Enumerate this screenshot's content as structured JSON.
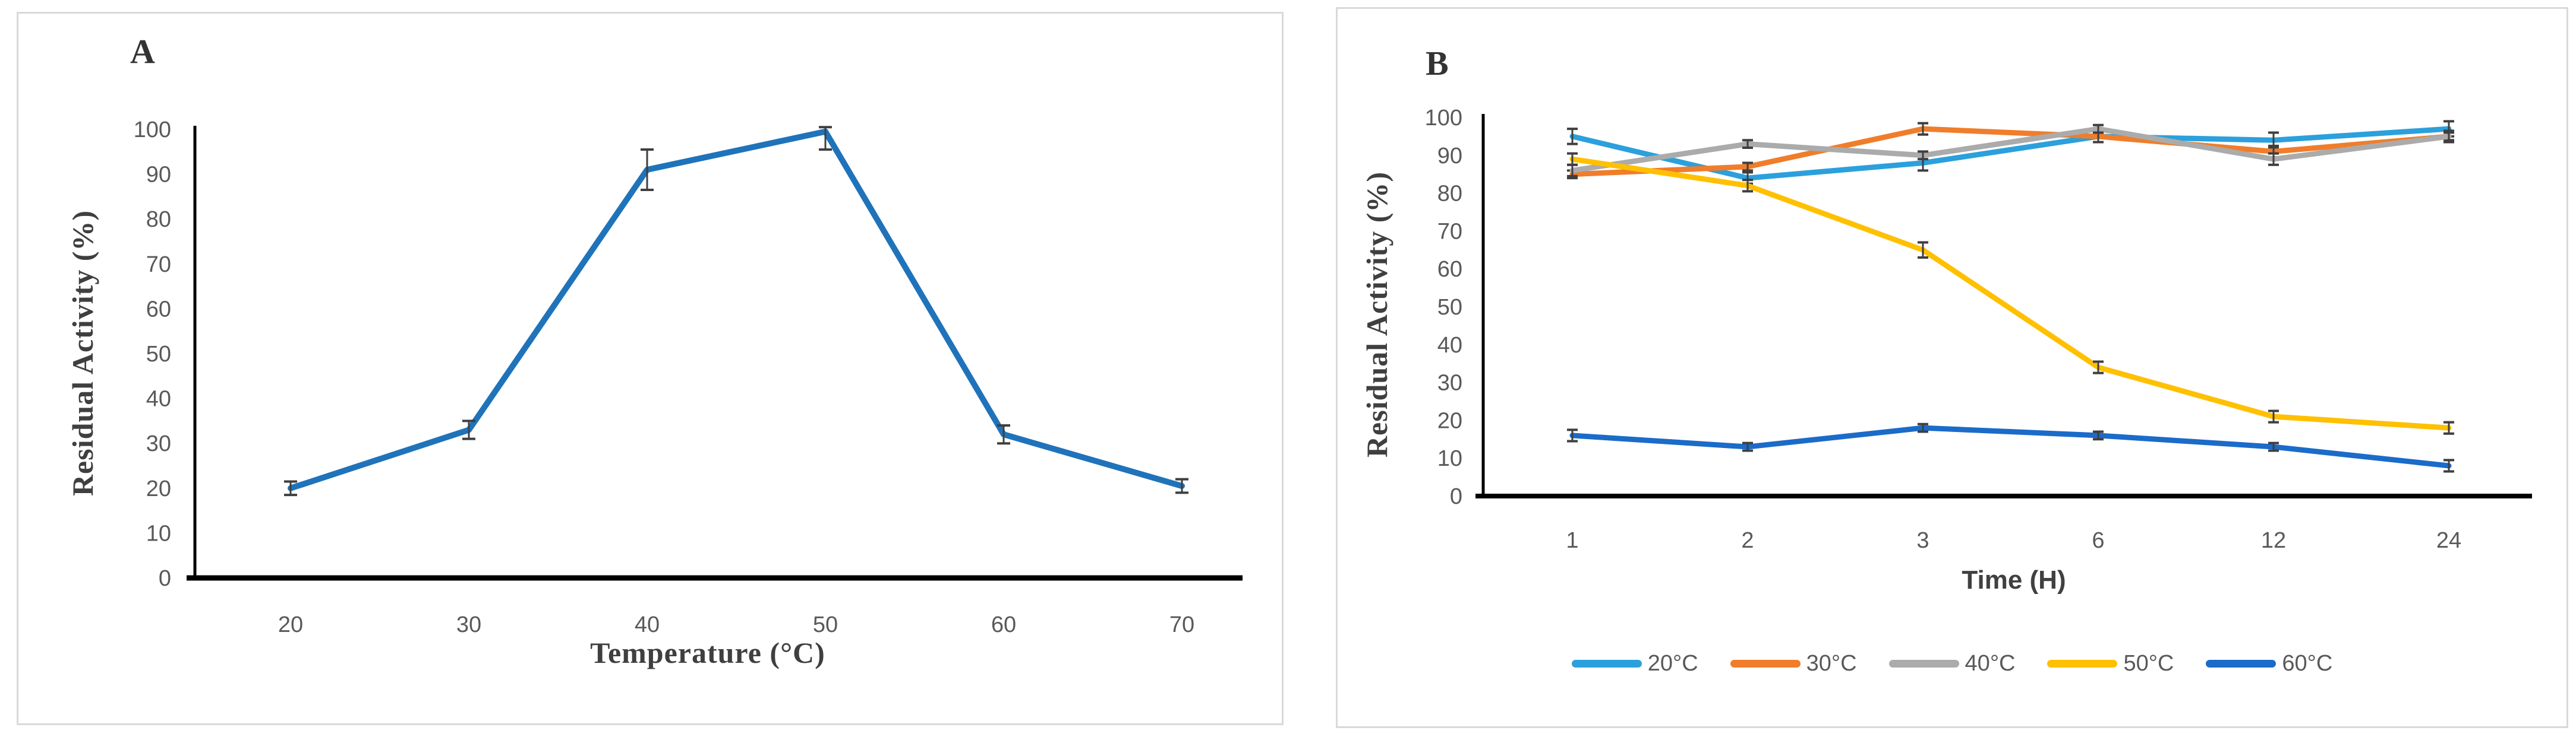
{
  "page": {
    "background": "#ffffff",
    "panel_border_color": "#d9d9d9",
    "axis_line_color": "#000000",
    "tick_label_color": "#595959",
    "error_bar_color": "#3f3f3f"
  },
  "chart_data": [
    {
      "type": "line",
      "panel_label": "A",
      "xlabel": "Temperature (°C)",
      "ylabel": "Residual Activity (%)",
      "categories": [
        "20",
        "30",
        "40",
        "50",
        "60",
        "70"
      ],
      "ylim": [
        0,
        100
      ],
      "ytick_step": 10,
      "ytick_labels": [
        "0",
        "10",
        "20",
        "30",
        "40",
        "50",
        "60",
        "70",
        "80",
        "90",
        "100"
      ],
      "grid": false,
      "legend_position": "none",
      "series": [
        {
          "name": "Residual activity",
          "color": "#1F73BA",
          "values": [
            20,
            33,
            91,
            99.5,
            32,
            20.5
          ],
          "errors": [
            1.5,
            2,
            [
              4.5,
              4.5
            ],
            [
              4,
              1
            ],
            2,
            1.5
          ]
        }
      ]
    },
    {
      "type": "line",
      "panel_label": "B",
      "xlabel": "Time (H)",
      "ylabel": "Residual Activity (%)",
      "categories": [
        "1",
        "2",
        "3",
        "6",
        "12",
        "24"
      ],
      "ylim": [
        0,
        100
      ],
      "ytick_step": 10,
      "ytick_labels": [
        "0",
        "10",
        "20",
        "30",
        "40",
        "50",
        "60",
        "70",
        "80",
        "90",
        "100"
      ],
      "grid": false,
      "legend_position": "bottom",
      "series": [
        {
          "name": "20°C",
          "color": "#2BA0DC",
          "values": [
            95,
            84,
            88,
            95,
            94,
            97
          ],
          "errors": [
            2,
            1.5,
            2,
            1.5,
            2,
            2
          ]
        },
        {
          "name": "30°C",
          "color": "#F07D2B",
          "values": [
            85,
            87,
            97,
            95,
            91,
            95
          ],
          "errors": [
            1,
            1,
            1.5,
            1.5,
            1.5,
            1
          ]
        },
        {
          "name": "40°C",
          "color": "#ABABAB",
          "values": [
            86,
            93,
            90,
            97,
            89,
            95
          ],
          "errors": [
            1.5,
            1,
            1,
            1,
            1.5,
            1.5
          ]
        },
        {
          "name": "50°C",
          "color": "#FFC000",
          "values": [
            89,
            82,
            65,
            34,
            21,
            18
          ],
          "errors": [
            1.5,
            1.5,
            2,
            1.5,
            1.5,
            1.5
          ]
        },
        {
          "name": "60°C",
          "color": "#1B6BC9",
          "values": [
            16,
            13,
            18,
            16,
            13,
            8
          ],
          "errors": [
            1.5,
            1,
            1,
            1,
            1,
            1.5
          ]
        }
      ]
    }
  ]
}
